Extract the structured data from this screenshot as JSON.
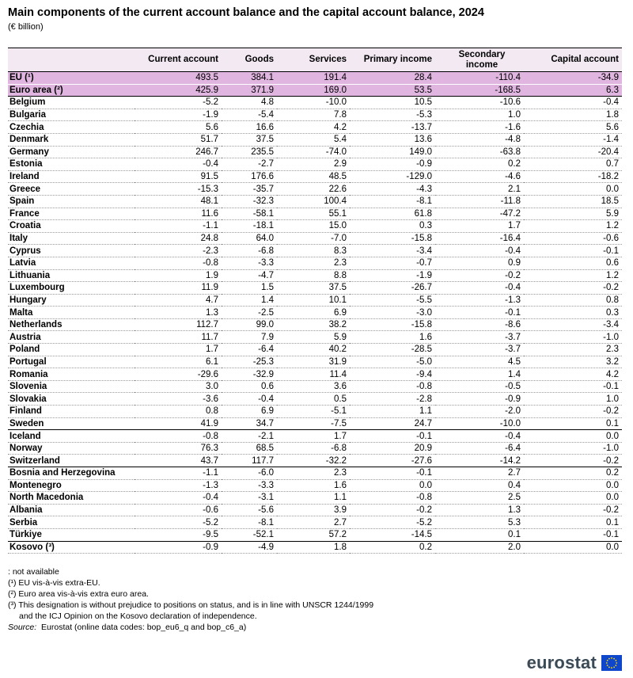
{
  "title": "Main components of the current account balance and the capital account balance, 2024",
  "subtitle": "(€ billion)",
  "columns": [
    "",
    "Current account",
    "Goods",
    "Services",
    "Primary income",
    "Secondary income",
    "Capital account"
  ],
  "rows": [
    {
      "name": "EU (¹)",
      "cells": [
        "493.5",
        "384.1",
        "191.4",
        "28.4",
        "-110.4",
        "-34.9"
      ]
    },
    {
      "name": "Euro area (²)",
      "cells": [
        "425.9",
        "371.9",
        "169.0",
        "53.5",
        "-168.5",
        "6.3"
      ]
    },
    {
      "name": "Belgium",
      "cells": [
        "-5.2",
        "4.8",
        "-10.0",
        "10.5",
        "-10.6",
        "-0.4"
      ]
    },
    {
      "name": "Bulgaria",
      "cells": [
        "-1.9",
        "-5.4",
        "7.8",
        "-5.3",
        "1.0",
        "1.8"
      ]
    },
    {
      "name": "Czechia",
      "cells": [
        "5.6",
        "16.6",
        "4.2",
        "-13.7",
        "-1.6",
        "5.6"
      ]
    },
    {
      "name": "Denmark",
      "cells": [
        "51.7",
        "37.5",
        "5.4",
        "13.6",
        "-4.8",
        "-1.4"
      ]
    },
    {
      "name": "Germany",
      "cells": [
        "246.7",
        "235.5",
        "-74.0",
        "149.0",
        "-63.8",
        "-20.4"
      ]
    },
    {
      "name": "Estonia",
      "cells": [
        "-0.4",
        "-2.7",
        "2.9",
        "-0.9",
        "0.2",
        "0.7"
      ]
    },
    {
      "name": "Ireland",
      "cells": [
        "91.5",
        "176.6",
        "48.5",
        "-129.0",
        "-4.6",
        "-18.2"
      ]
    },
    {
      "name": "Greece",
      "cells": [
        "-15.3",
        "-35.7",
        "22.6",
        "-4.3",
        "2.1",
        "0.0"
      ]
    },
    {
      "name": "Spain",
      "cells": [
        "48.1",
        "-32.3",
        "100.4",
        "-8.1",
        "-11.8",
        "18.5"
      ]
    },
    {
      "name": "France",
      "cells": [
        "11.6",
        "-58.1",
        "55.1",
        "61.8",
        "-47.2",
        "5.9"
      ]
    },
    {
      "name": "Croatia",
      "cells": [
        "-1.1",
        "-18.1",
        "15.0",
        "0.3",
        "1.7",
        "1.2"
      ]
    },
    {
      "name": "Italy",
      "cells": [
        "24.8",
        "64.0",
        "-7.0",
        "-15.8",
        "-16.4",
        "-0.6"
      ]
    },
    {
      "name": "Cyprus",
      "cells": [
        "-2.3",
        "-6.8",
        "8.3",
        "-3.4",
        "-0.4",
        "-0.1"
      ]
    },
    {
      "name": "Latvia",
      "cells": [
        "-0.8",
        "-3.3",
        "2.3",
        "-0.7",
        "0.9",
        "0.6"
      ]
    },
    {
      "name": "Lithuania",
      "cells": [
        "1.9",
        "-4.7",
        "8.8",
        "-1.9",
        "-0.2",
        "1.2"
      ]
    },
    {
      "name": "Luxembourg",
      "cells": [
        "11.9",
        "1.5",
        "37.5",
        "-26.7",
        "-0.4",
        "-0.2"
      ]
    },
    {
      "name": "Hungary",
      "cells": [
        "4.7",
        "1.4",
        "10.1",
        "-5.5",
        "-1.3",
        "0.8"
      ]
    },
    {
      "name": "Malta",
      "cells": [
        "1.3",
        "-2.5",
        "6.9",
        "-3.0",
        "-0.1",
        "0.3"
      ]
    },
    {
      "name": "Netherlands",
      "cells": [
        "112.7",
        "99.0",
        "38.2",
        "-15.8",
        "-8.6",
        "-3.4"
      ]
    },
    {
      "name": "Austria",
      "cells": [
        "11.7",
        "7.9",
        "5.9",
        "1.6",
        "-3.7",
        "-1.0"
      ]
    },
    {
      "name": "Poland",
      "cells": [
        "1.7",
        "-6.4",
        "40.2",
        "-28.5",
        "-3.7",
        "2.3"
      ]
    },
    {
      "name": "Portugal",
      "cells": [
        "6.1",
        "-25.3",
        "31.9",
        "-5.0",
        "4.5",
        "3.2"
      ]
    },
    {
      "name": "Romania",
      "cells": [
        "-29.6",
        "-32.9",
        "11.4",
        "-9.4",
        "1.4",
        "4.2"
      ]
    },
    {
      "name": "Slovenia",
      "cells": [
        "3.0",
        "0.6",
        "3.6",
        "-0.8",
        "-0.5",
        "-0.1"
      ]
    },
    {
      "name": "Slovakia",
      "cells": [
        "-3.6",
        "-0.4",
        "0.5",
        "-2.8",
        "-0.9",
        "1.0"
      ]
    },
    {
      "name": "Finland",
      "cells": [
        "0.8",
        "6.9",
        "-5.1",
        "1.1",
        "-2.0",
        "-0.2"
      ]
    },
    {
      "name": "Sweden",
      "cells": [
        "41.9",
        "34.7",
        "-7.5",
        "24.7",
        "-10.0",
        "0.1"
      ]
    },
    {
      "name": "Iceland",
      "cells": [
        "-0.8",
        "-2.1",
        "1.7",
        "-0.1",
        "-0.4",
        "0.0"
      ]
    },
    {
      "name": "Norway",
      "cells": [
        "76.3",
        "68.5",
        "-6.8",
        "20.9",
        "-6.4",
        "-1.0"
      ]
    },
    {
      "name": "Switzerland",
      "cells": [
        "43.7",
        "117.7",
        "-32.2",
        "-27.6",
        "-14.2",
        "-0.2"
      ]
    },
    {
      "name": "Bosnia and Herzegovina",
      "cells": [
        "-1.1",
        "-6.0",
        "2.3",
        "-0.1",
        "2.7",
        "0.2"
      ]
    },
    {
      "name": "Montenegro",
      "cells": [
        "-1.3",
        "-3.3",
        "1.6",
        "0.0",
        "0.4",
        "0.0"
      ]
    },
    {
      "name": "North Macedonia",
      "cells": [
        "-0.4",
        "-3.1",
        "1.1",
        "-0.8",
        "2.5",
        "0.0"
      ]
    },
    {
      "name": "Albania",
      "cells": [
        "-0.6",
        "-5.6",
        "3.9",
        "-0.2",
        "1.3",
        "-0.2"
      ]
    },
    {
      "name": "Serbia",
      "cells": [
        "-5.2",
        "-8.1",
        "2.7",
        "-5.2",
        "5.3",
        "0.1"
      ]
    },
    {
      "name": "Türkiye",
      "cells": [
        "-9.5",
        "-52.1",
        "57.2",
        "-14.5",
        "0.1",
        "-0.1"
      ]
    },
    {
      "name": "Kosovo (³)",
      "cells": [
        "-0.9",
        "-4.9",
        "1.8",
        "0.2",
        "2.0",
        "0.0"
      ]
    }
  ],
  "notes": {
    "not_available": ": not available",
    "n1": "(¹) EU vis-à-vis extra-EU.",
    "n2": "(²) Euro area vis-à-vis extra euro area.",
    "n3_line1": "(³) This designation is without prejudice to positions on status, and is in line with UNSCR 1244/1999",
    "n3_line2": "and the ICJ Opinion on the Kosovo declaration of independence.",
    "source_label": "Source:",
    "source_text": "Eurostat (online data codes: bop_eu6_q and bop_c6_a)"
  },
  "logo": {
    "text": "eurostat",
    "flag_color": "#0e47cb",
    "star_color": "#ffde00"
  },
  "colors": {
    "header_bg": "#f3e9f3",
    "aggregate_bg": "#e0b6e0"
  }
}
